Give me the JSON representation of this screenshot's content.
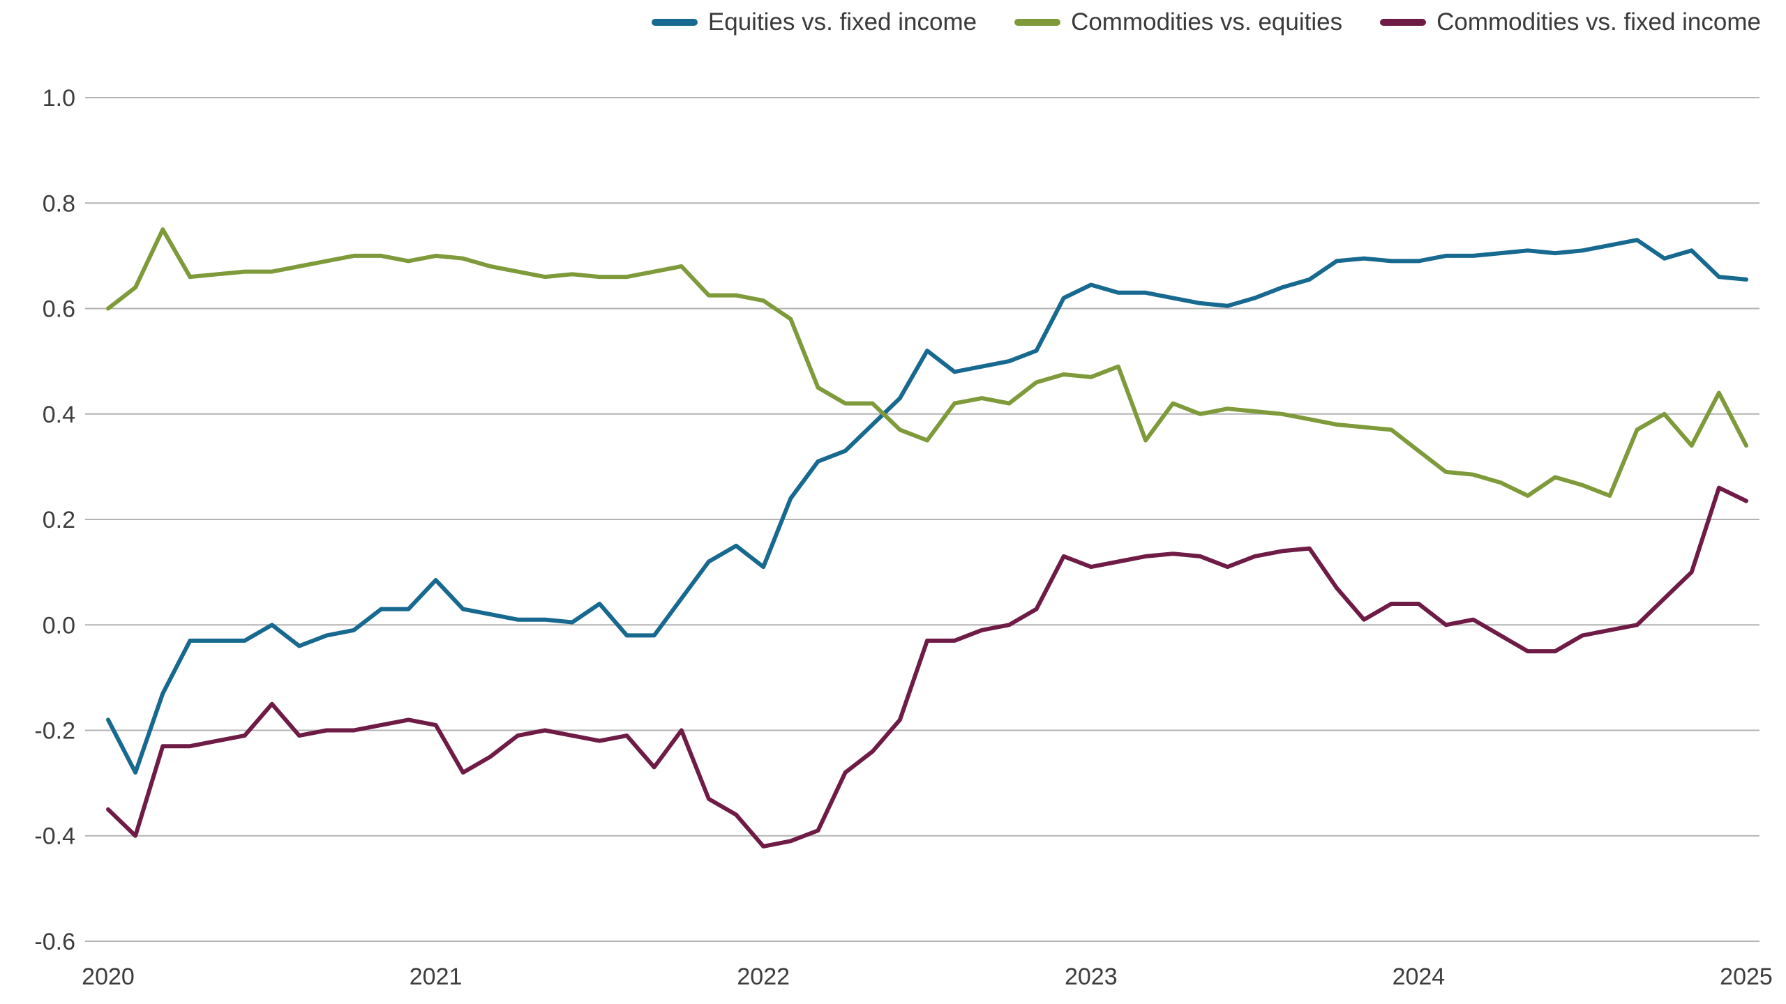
{
  "chart_data": {
    "type": "line",
    "title": "",
    "xlabel": "",
    "ylabel": "",
    "x_range": [
      2020,
      2025
    ],
    "ylim": [
      -0.6,
      1.0
    ],
    "grid": true,
    "gridline_color": "#b3b3b3",
    "text_color": "#3d3d3d",
    "legend_position": "top-right",
    "x_start": 2020,
    "x_step_years": 0.0833333,
    "x_ticks": [
      {
        "value": 2020,
        "label": "2020"
      },
      {
        "value": 2021,
        "label": "2021"
      },
      {
        "value": 2022,
        "label": "2022"
      },
      {
        "value": 2023,
        "label": "2023"
      },
      {
        "value": 2024,
        "label": "2024"
      },
      {
        "value": 2025,
        "label": "2025"
      }
    ],
    "y_ticks": [
      {
        "value": 1.0,
        "label": "1.0"
      },
      {
        "value": 0.8,
        "label": "0.8"
      },
      {
        "value": 0.6,
        "label": "0.6"
      },
      {
        "value": 0.4,
        "label": "0.4"
      },
      {
        "value": 0.2,
        "label": "0.2"
      },
      {
        "value": 0.0,
        "label": "0.0"
      },
      {
        "value": -0.2,
        "label": "-0.2"
      },
      {
        "value": -0.4,
        "label": "-0.4"
      },
      {
        "value": -0.6,
        "label": "-0.6"
      }
    ],
    "series": [
      {
        "name": "Equities vs. fixed income",
        "color": "#17698f",
        "values": [
          -0.18,
          -0.28,
          -0.13,
          -0.03,
          -0.03,
          -0.03,
          0.0,
          -0.04,
          -0.02,
          -0.01,
          0.03,
          0.03,
          0.085,
          0.03,
          0.02,
          0.01,
          0.01,
          0.005,
          0.04,
          -0.02,
          -0.02,
          0.05,
          0.12,
          0.15,
          0.11,
          0.24,
          0.31,
          0.33,
          0.38,
          0.43,
          0.52,
          0.48,
          0.49,
          0.5,
          0.52,
          0.62,
          0.645,
          0.63,
          0.63,
          0.62,
          0.61,
          0.605,
          0.62,
          0.64,
          0.655,
          0.69,
          0.695,
          0.69,
          0.69,
          0.7,
          0.7,
          0.705,
          0.71,
          0.705,
          0.71,
          0.72,
          0.73,
          0.695,
          0.71,
          0.66,
          0.655
        ]
      },
      {
        "name": "Commodities vs. equities",
        "color": "#7f9a3a",
        "values": [
          0.6,
          0.64,
          0.75,
          0.66,
          0.665,
          0.67,
          0.67,
          0.68,
          0.69,
          0.7,
          0.7,
          0.69,
          0.7,
          0.695,
          0.68,
          0.67,
          0.66,
          0.665,
          0.66,
          0.66,
          0.67,
          0.68,
          0.625,
          0.625,
          0.615,
          0.58,
          0.45,
          0.42,
          0.42,
          0.37,
          0.35,
          0.42,
          0.43,
          0.42,
          0.46,
          0.475,
          0.47,
          0.49,
          0.35,
          0.42,
          0.4,
          0.41,
          0.405,
          0.4,
          0.39,
          0.38,
          0.375,
          0.37,
          0.33,
          0.29,
          0.285,
          0.27,
          0.245,
          0.28,
          0.265,
          0.245,
          0.37,
          0.4,
          0.34,
          0.44,
          0.34
        ]
      },
      {
        "name": "Commodities vs. fixed income",
        "color": "#6e1c46",
        "values": [
          -0.35,
          -0.4,
          -0.23,
          -0.23,
          -0.22,
          -0.21,
          -0.15,
          -0.21,
          -0.2,
          -0.2,
          -0.19,
          -0.18,
          -0.19,
          -0.28,
          -0.25,
          -0.21,
          -0.2,
          -0.21,
          -0.22,
          -0.21,
          -0.27,
          -0.2,
          -0.33,
          -0.36,
          -0.42,
          -0.41,
          -0.39,
          -0.28,
          -0.24,
          -0.18,
          -0.03,
          -0.03,
          -0.01,
          0.0,
          0.03,
          0.13,
          0.11,
          0.12,
          0.13,
          0.135,
          0.13,
          0.11,
          0.13,
          0.14,
          0.145,
          0.07,
          0.01,
          0.04,
          0.04,
          0.0,
          0.01,
          -0.02,
          -0.05,
          -0.05,
          -0.02,
          -0.01,
          0.0,
          0.05,
          0.1,
          0.26,
          0.235
        ]
      }
    ]
  }
}
